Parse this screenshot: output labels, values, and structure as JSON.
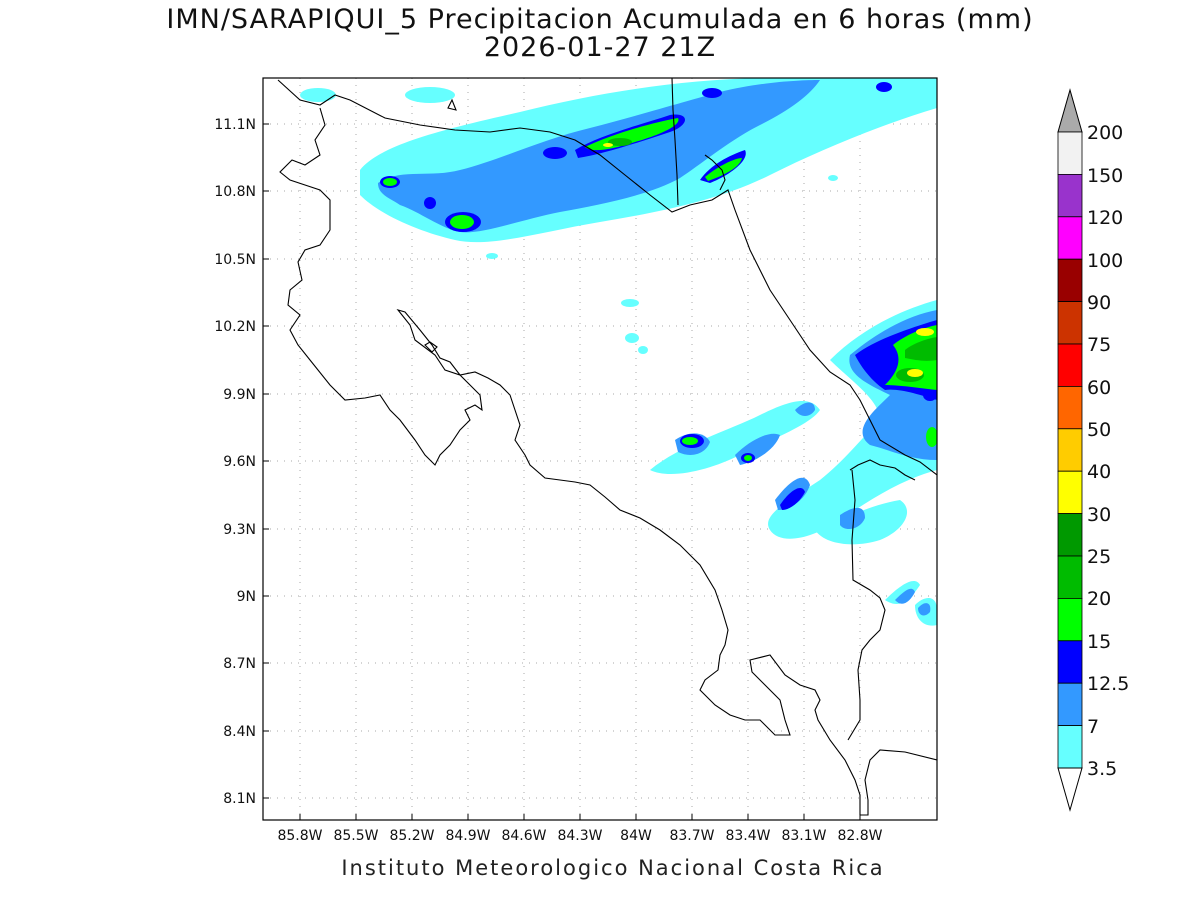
{
  "title": "IMN/SARAPIQUI_5 Precipitacion Acumulada en 6 horas (mm)",
  "subtitle": "2026-01-27 21Z",
  "footer": "Instituto Meteorologico Nacional Costa Rica",
  "axes": {
    "x_ticks": [
      "85.8W",
      "85.5W",
      "85.2W",
      "84.9W",
      "84.6W",
      "84.3W",
      "84W",
      "83.7W",
      "83.4W",
      "83.1W",
      "82.8W"
    ],
    "y_ticks": [
      "11.1N",
      "10.8N",
      "10.5N",
      "10.2N",
      "9.9N",
      "9.6N",
      "9.3N",
      "9N",
      "8.7N",
      "8.4N",
      "8.1N"
    ]
  },
  "colorbar": {
    "labels": [
      "200",
      "150",
      "120",
      "100",
      "90",
      "75",
      "60",
      "50",
      "40",
      "30",
      "25",
      "20",
      "15",
      "12.5",
      "7",
      "3.5"
    ],
    "colors_top_to_bottom": [
      "#f2f2f2",
      "#9933cc",
      "#ff00ff",
      "#990000",
      "#cc3300",
      "#ff0000",
      "#ff6600",
      "#ffcc00",
      "#ffff00",
      "#009900",
      "#00bb00",
      "#00ff00",
      "#0000ff",
      "#3399ff",
      "#66ffff"
    ],
    "over_color": "#aaaaaa",
    "under_color": "#ffffff"
  },
  "legend_colors": {
    "light_cyan": "#66ffff",
    "medium_blue": "#3399ff",
    "blue": "#0000ff",
    "green": "#00ff00",
    "dark_green": "#00bb00",
    "yellow": "#ffff00"
  }
}
